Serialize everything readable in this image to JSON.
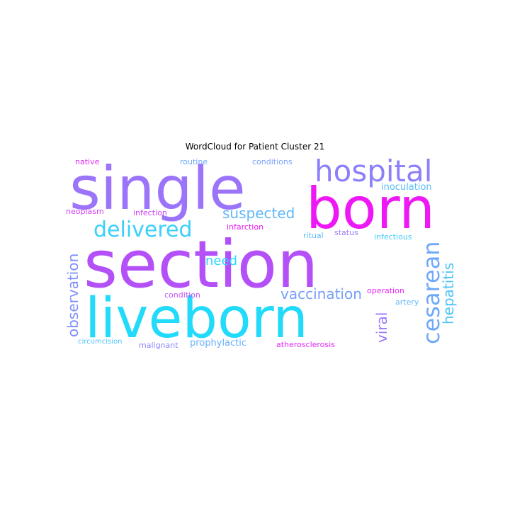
{
  "title": "WordCloud for Patient Cluster 21",
  "words": [
    {
      "text": "section",
      "color": "#b450f8"
    },
    {
      "text": "single",
      "color": "#9c74fa"
    },
    {
      "text": "born",
      "color": "#ee18f6"
    },
    {
      "text": "liveborn",
      "color": "#22dafa"
    },
    {
      "text": "hospital",
      "color": "#8c80fa"
    },
    {
      "text": "delivered",
      "color": "#3ad0fa"
    },
    {
      "text": "suspected",
      "color": "#60b8fa"
    },
    {
      "text": "cesarean",
      "color": "#6ea8fa"
    },
    {
      "text": "hepatitis",
      "color": "#4ec4fa"
    },
    {
      "text": "observation",
      "color": "#7e90fa"
    },
    {
      "text": "vaccination",
      "color": "#78a0fa"
    },
    {
      "text": "need",
      "color": "#2ed6fa"
    },
    {
      "text": "viral",
      "color": "#9a78fa"
    },
    {
      "text": "inoculation",
      "color": "#58bcfa"
    },
    {
      "text": "prophylactic",
      "color": "#68b0fa"
    },
    {
      "text": "native",
      "color": "#e02cf6"
    },
    {
      "text": "routine",
      "color": "#6eaafa"
    },
    {
      "text": "conditions",
      "color": "#7aa0fa"
    },
    {
      "text": "neoplasm",
      "color": "#d83cf8"
    },
    {
      "text": "infection",
      "color": "#d040f8"
    },
    {
      "text": "infarction",
      "color": "#f014f6"
    },
    {
      "text": "ritual",
      "color": "#5cbcfa"
    },
    {
      "text": "status",
      "color": "#9a7af8"
    },
    {
      "text": "infectious",
      "color": "#44ccfa"
    },
    {
      "text": "condition",
      "color": "#c054f8"
    },
    {
      "text": "operation",
      "color": "#e828f6"
    },
    {
      "text": "artery",
      "color": "#64b8fa"
    },
    {
      "text": "circumcision",
      "color": "#4ec4fa"
    },
    {
      "text": "malignant",
      "color": "#8c84fa"
    },
    {
      "text": "atherosclerosis",
      "color": "#e428f6"
    }
  ]
}
